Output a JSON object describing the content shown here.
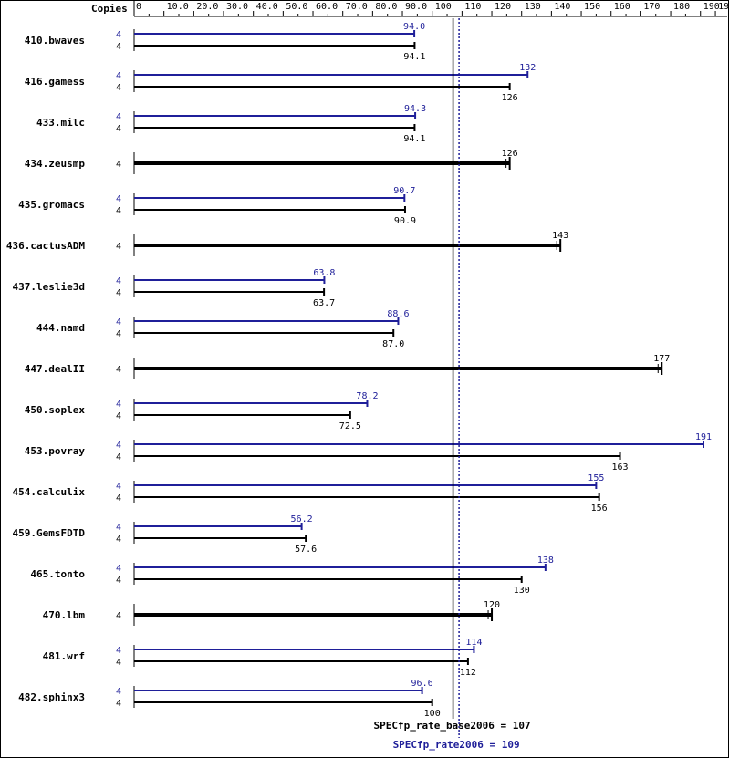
{
  "chart_data": {
    "type": "bar",
    "copies_label": "Copies",
    "x_ticks": [
      {
        "value": 0,
        "label": "0"
      },
      {
        "value": 10,
        "label": "10.0"
      },
      {
        "value": 20,
        "label": "20.0"
      },
      {
        "value": 30,
        "label": "30.0"
      },
      {
        "value": 40,
        "label": "40.0"
      },
      {
        "value": 50,
        "label": "50.0"
      },
      {
        "value": 60,
        "label": "60.0"
      },
      {
        "value": 70,
        "label": "70.0"
      },
      {
        "value": 80,
        "label": "80.0"
      },
      {
        "value": 90,
        "label": "90.0"
      },
      {
        "value": 100,
        "label": "100"
      },
      {
        "value": 110,
        "label": "110"
      },
      {
        "value": 120,
        "label": "120"
      },
      {
        "value": 130,
        "label": "130"
      },
      {
        "value": 140,
        "label": "140"
      },
      {
        "value": 150,
        "label": "150"
      },
      {
        "value": 160,
        "label": "160"
      },
      {
        "value": 170,
        "label": "170"
      },
      {
        "value": 180,
        "label": "180"
      },
      {
        "value": 190,
        "label": "190"
      },
      {
        "value": 195,
        "label": "195"
      }
    ],
    "xlim": [
      0,
      195
    ],
    "benchmarks": [
      {
        "name": "410.bwaves",
        "peak_copies": "4",
        "base_copies": "4",
        "peak": 94.0,
        "peak_label": "94.0",
        "base": 94.1,
        "base_label": "94.1"
      },
      {
        "name": "416.gamess",
        "peak_copies": "4",
        "base_copies": "4",
        "peak": 132,
        "peak_label": "132",
        "base": 126,
        "base_label": "126"
      },
      {
        "name": "433.milc",
        "peak_copies": "4",
        "base_copies": "4",
        "peak": 94.3,
        "peak_label": "94.3",
        "base": 94.1,
        "base_label": "94.1"
      },
      {
        "name": "434.zeusmp",
        "base_copies": "4",
        "base": 126,
        "base_label": "126"
      },
      {
        "name": "435.gromacs",
        "peak_copies": "4",
        "base_copies": "4",
        "peak": 90.7,
        "peak_label": "90.7",
        "base": 90.9,
        "base_label": "90.9"
      },
      {
        "name": "436.cactusADM",
        "base_copies": "4",
        "base": 143,
        "base_label": "143"
      },
      {
        "name": "437.leslie3d",
        "peak_copies": "4",
        "base_copies": "4",
        "peak": 63.8,
        "peak_label": "63.8",
        "base": 63.7,
        "base_label": "63.7"
      },
      {
        "name": "444.namd",
        "peak_copies": "4",
        "base_copies": "4",
        "peak": 88.6,
        "peak_label": "88.6",
        "base": 87.0,
        "base_label": "87.0"
      },
      {
        "name": "447.dealII",
        "base_copies": "4",
        "base": 177,
        "base_label": "177"
      },
      {
        "name": "450.soplex",
        "peak_copies": "4",
        "base_copies": "4",
        "peak": 78.2,
        "peak_label": "78.2",
        "base": 72.5,
        "base_label": "72.5"
      },
      {
        "name": "453.povray",
        "peak_copies": "4",
        "base_copies": "4",
        "peak": 191,
        "peak_label": "191",
        "base": 163,
        "base_label": "163"
      },
      {
        "name": "454.calculix",
        "peak_copies": "4",
        "base_copies": "4",
        "peak": 155,
        "peak_label": "155",
        "base": 156,
        "base_label": "156"
      },
      {
        "name": "459.GemsFDTD",
        "peak_copies": "4",
        "base_copies": "4",
        "peak": 56.2,
        "peak_label": "56.2",
        "base": 57.6,
        "base_label": "57.6"
      },
      {
        "name": "465.tonto",
        "peak_copies": "4",
        "base_copies": "4",
        "peak": 138,
        "peak_label": "138",
        "base": 130,
        "base_label": "130"
      },
      {
        "name": "470.lbm",
        "base_copies": "4",
        "base": 120,
        "base_label": "120"
      },
      {
        "name": "481.wrf",
        "peak_copies": "4",
        "base_copies": "4",
        "peak": 114,
        "peak_label": "114",
        "base": 112,
        "base_label": "112"
      },
      {
        "name": "482.sphinx3",
        "peak_copies": "4",
        "base_copies": "4",
        "peak": 96.6,
        "peak_label": "96.6",
        "base": 100,
        "base_label": "100"
      }
    ],
    "base_summary": {
      "label": "SPECfp_rate_base2006 = 107",
      "value": 107
    },
    "peak_summary": {
      "label": "SPECfp_rate2006 = 109",
      "value": 109
    },
    "colors": {
      "base": "#000000",
      "peak": "#1f1f99"
    }
  }
}
